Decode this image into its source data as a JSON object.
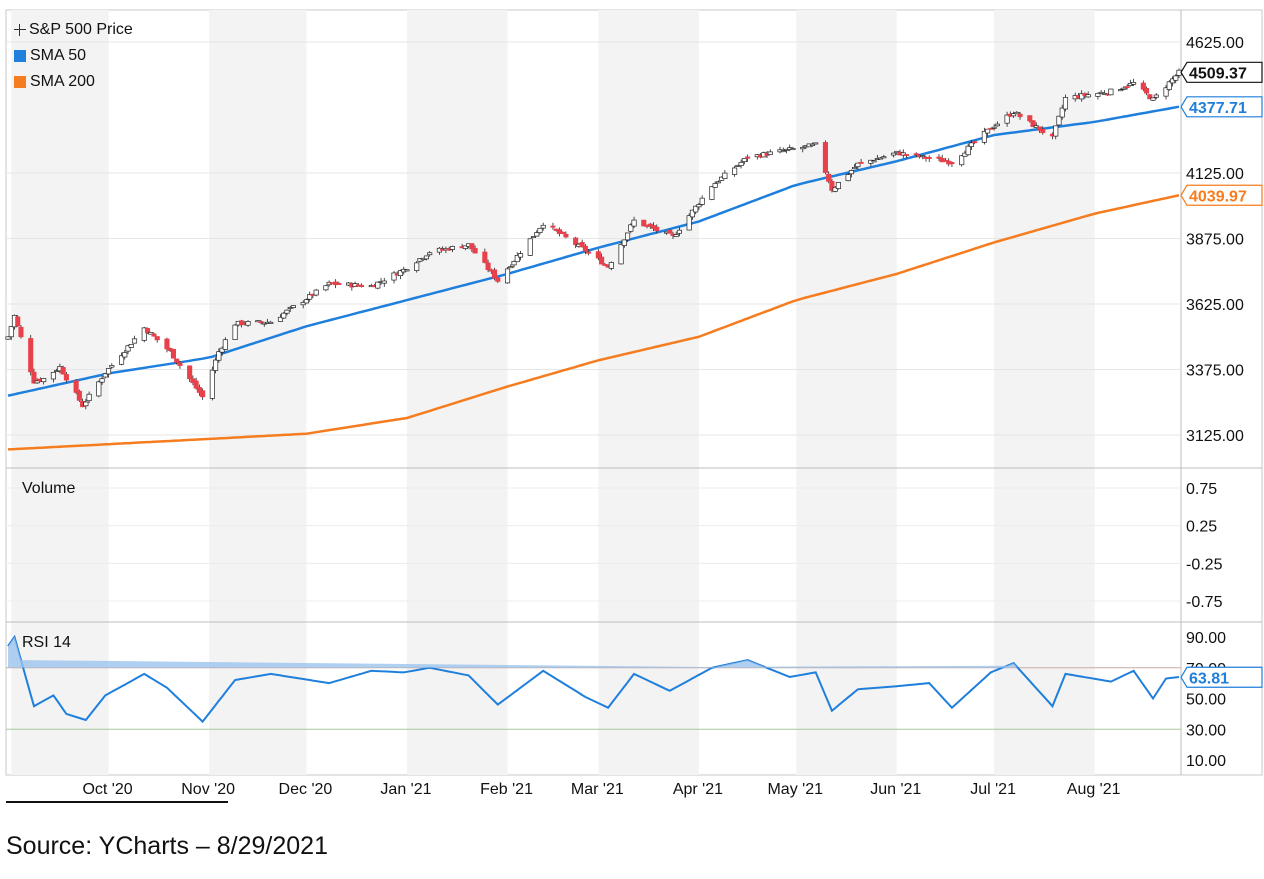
{
  "source": "Source: YCharts – 8/29/2021",
  "colors": {
    "up": "#ffffff",
    "down": "#e8414b",
    "sma50": "#1f7fdc",
    "sma200": "#f57c1f",
    "rsi": "#1f7fdc"
  },
  "chart_data": [
    {
      "type": "line",
      "subtype": "candlestick",
      "legend": [
        "S&P 500 Price",
        "SMA 50",
        "SMA 200"
      ],
      "legend_placement": "top-left",
      "x_ticks": [
        "Oct '20",
        "Nov '20",
        "Dec '20",
        "Jan '21",
        "Feb '21",
        "Mar '21",
        "Apr '21",
        "May '21",
        "Jun '21",
        "Jul '21",
        "Aug '21"
      ],
      "y_ticks": [
        4625,
        4125,
        3875,
        3625,
        3375,
        3125
      ],
      "y_tick_labels": [
        "4625.00",
        "4125.00",
        "3875.00",
        "3625.00",
        "3375.00",
        "3125.00"
      ],
      "ylim": [
        3050,
        4690
      ],
      "grid": true,
      "last_values": {
        "price": "4509.37",
        "sma50": "4377.71",
        "sma200": "4039.97"
      },
      "price_anchors": {
        "dates": [
          "2020-08-31",
          "2020-09-02",
          "2020-09-08",
          "2020-09-11",
          "2020-09-16",
          "2020-09-23",
          "2020-09-30",
          "2020-10-12",
          "2020-10-20",
          "2020-10-30",
          "2020-11-04",
          "2020-11-09",
          "2020-11-20",
          "2020-12-08",
          "2020-12-21",
          "2020-12-31",
          "2021-01-08",
          "2021-01-20",
          "2021-01-29",
          "2021-02-12",
          "2021-02-25",
          "2021-03-04",
          "2021-03-12",
          "2021-03-24",
          "2021-04-05",
          "2021-04-16",
          "2021-05-07",
          "2021-05-12",
          "2021-05-20",
          "2021-06-01",
          "2021-06-18",
          "2021-06-30",
          "2021-07-07",
          "2021-07-19",
          "2021-07-23",
          "2021-08-06",
          "2021-08-13",
          "2021-08-19",
          "2021-08-27"
        ],
        "close": [
          3500,
          3580,
          3330,
          3340,
          3385,
          3237,
          3363,
          3534,
          3443,
          3270,
          3443,
          3550,
          3557,
          3702,
          3694,
          3756,
          3824,
          3851,
          3714,
          3934,
          3829,
          3768,
          3943,
          3881,
          4077,
          4185,
          4232,
          4063,
          4159,
          4202,
          4166,
          4297,
          4358,
          4258,
          4411,
          4437,
          4468,
          4405,
          4509
        ]
      },
      "sma50_anchors": {
        "dates": [
          "2020-08-31",
          "2020-10-01",
          "2020-11-01",
          "2020-12-01",
          "2021-01-01",
          "2021-02-01",
          "2021-03-01",
          "2021-04-01",
          "2021-05-01",
          "2021-06-01",
          "2021-07-01",
          "2021-08-01",
          "2021-08-27"
        ],
        "values": [
          3275,
          3360,
          3420,
          3540,
          3640,
          3740,
          3840,
          3940,
          4080,
          4170,
          4270,
          4320,
          4378
        ]
      },
      "sma200_anchors": {
        "dates": [
          "2020-08-31",
          "2020-10-01",
          "2020-11-01",
          "2020-12-01",
          "2021-01-01",
          "2021-02-01",
          "2021-03-01",
          "2021-04-01",
          "2021-05-01",
          "2021-06-01",
          "2021-07-01",
          "2021-08-01",
          "2021-08-27"
        ],
        "values": [
          3070,
          3090,
          3110,
          3130,
          3190,
          3310,
          3410,
          3500,
          3640,
          3740,
          3860,
          3970,
          4040
        ]
      }
    },
    {
      "type": "bar",
      "title": "Volume",
      "y_ticks": [
        0.75,
        0.25,
        -0.25,
        -0.75
      ],
      "y_tick_labels": [
        "0.75",
        "0.25",
        "-0.25",
        "-0.75"
      ],
      "values": []
    },
    {
      "type": "line",
      "title": "RSI 14",
      "y_ticks": [
        90,
        70,
        50,
        30,
        10
      ],
      "y_tick_labels": [
        "90.00",
        "70.00",
        "50.00",
        "30.00",
        "10.00"
      ],
      "ylim": [
        4,
        97
      ],
      "bands": [
        70,
        30
      ],
      "last_value": "63.81",
      "rsi_anchors": {
        "dates": [
          "2020-08-31",
          "2020-09-02",
          "2020-09-08",
          "2020-09-14",
          "2020-09-18",
          "2020-09-24",
          "2020-09-30",
          "2020-10-12",
          "2020-10-19",
          "2020-10-30",
          "2020-11-09",
          "2020-11-20",
          "2020-12-08",
          "2020-12-21",
          "2020-12-31",
          "2021-01-08",
          "2021-01-20",
          "2021-01-29",
          "2021-02-12",
          "2021-02-25",
          "2021-03-04",
          "2021-03-12",
          "2021-03-23",
          "2021-04-05",
          "2021-04-16",
          "2021-04-29",
          "2021-05-07",
          "2021-05-12",
          "2021-05-20",
          "2021-06-01",
          "2021-06-11",
          "2021-06-18",
          "2021-06-30",
          "2021-07-07",
          "2021-07-19",
          "2021-07-23",
          "2021-08-06",
          "2021-08-13",
          "2021-08-19",
          "2021-08-23",
          "2021-08-27"
        ],
        "values": [
          84,
          90,
          45,
          52,
          40,
          36,
          52,
          66,
          57,
          35,
          62,
          66,
          60,
          68,
          67,
          70,
          65,
          46,
          68,
          51,
          44,
          66,
          55,
          70,
          75,
          64,
          67,
          42,
          56,
          58,
          60,
          44,
          67,
          73,
          45,
          66,
          61,
          68,
          50,
          63,
          64
        ]
      }
    }
  ]
}
